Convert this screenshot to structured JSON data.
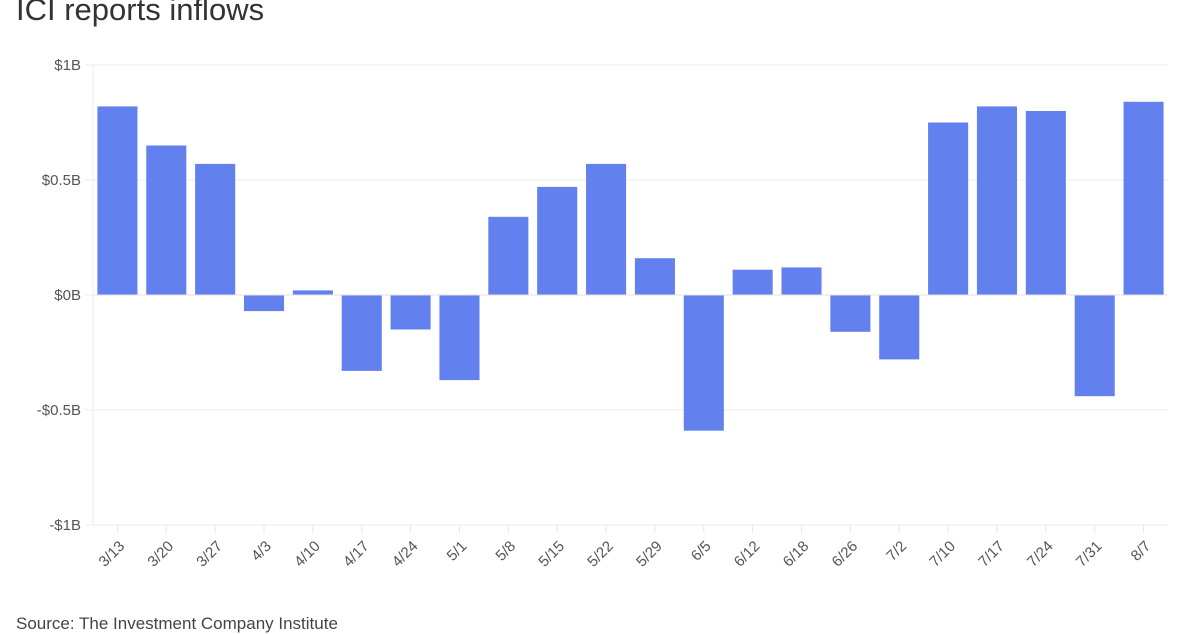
{
  "chart_data": {
    "type": "bar",
    "title": "ICI reports inflows",
    "source": "Source: The Investment Company Institute",
    "categories": [
      "3/13",
      "3/20",
      "3/27",
      "4/3",
      "4/10",
      "4/17",
      "4/24",
      "5/1",
      "5/8",
      "5/15",
      "5/22",
      "5/29",
      "6/5",
      "6/12",
      "6/18",
      "6/26",
      "7/2",
      "7/10",
      "7/17",
      "7/24",
      "7/31",
      "8/7"
    ],
    "values": [
      0.82,
      0.65,
      0.57,
      -0.07,
      0.02,
      -0.33,
      -0.15,
      -0.37,
      0.34,
      0.47,
      0.57,
      0.16,
      -0.59,
      0.11,
      0.12,
      -0.16,
      -0.28,
      0.75,
      0.82,
      0.8,
      -0.44,
      0.84
    ],
    "unit": "$B",
    "ylim": [
      -1,
      1
    ],
    "yticks": [
      1,
      0.5,
      0,
      -0.5,
      -1
    ],
    "ytick_labels": [
      "$1B",
      "$0.5B",
      "$0B",
      "-$0.5B",
      "-$1B"
    ],
    "grid": true,
    "bar_color": "#6381ee"
  }
}
